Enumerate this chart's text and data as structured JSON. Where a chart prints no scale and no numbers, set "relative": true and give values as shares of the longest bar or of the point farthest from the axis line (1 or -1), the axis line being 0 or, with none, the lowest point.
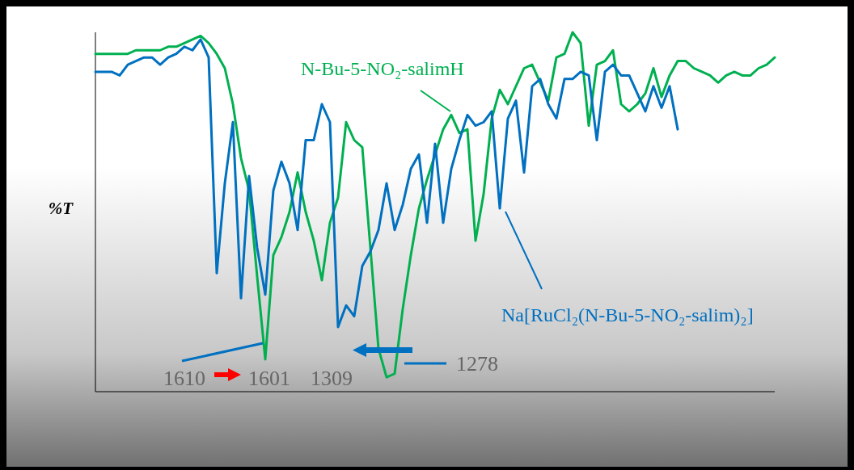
{
  "chart_data": {
    "type": "line",
    "relative": true,
    "ylabel": "%T",
    "categories": [
      null,
      null,
      null,
      null,
      null,
      null,
      null,
      null,
      null,
      null,
      null,
      null,
      null,
      null,
      null,
      null,
      null,
      null,
      null,
      null,
      null,
      null,
      null,
      null,
      null,
      null,
      null,
      null,
      null,
      null,
      null,
      null,
      null,
      null,
      null,
      null,
      null,
      null,
      null,
      null,
      null,
      null,
      null,
      null,
      null,
      null,
      null,
      null,
      null,
      null,
      null,
      null,
      null,
      null,
      null,
      null,
      null,
      null,
      null,
      null,
      null,
      null,
      null,
      null,
      null,
      null,
      null,
      null,
      null,
      null,
      null,
      null,
      null,
      null,
      null,
      null,
      null,
      null,
      null,
      null,
      null,
      null,
      null,
      null,
      null
    ],
    "legend": false,
    "line_style": "solid",
    "series": [
      {
        "name": "N-Bu-5-NO₂-salimH",
        "color": "#00b050",
        "values": [
          0.94,
          0.94,
          0.94,
          0.94,
          0.94,
          0.95,
          0.95,
          0.95,
          0.95,
          0.96,
          0.96,
          0.97,
          0.98,
          0.99,
          0.97,
          0.94,
          0.9,
          0.8,
          0.65,
          0.56,
          0.32,
          0.09,
          0.38,
          0.43,
          0.5,
          0.61,
          0.5,
          0.42,
          0.31,
          0.47,
          0.54,
          0.75,
          0.7,
          0.68,
          0.4,
          0.12,
          0.04,
          0.05,
          0.23,
          0.38,
          0.51,
          0.59,
          0.66,
          0.73,
          0.77,
          0.72,
          0.73,
          0.42,
          0.55,
          0.76,
          0.84,
          0.8,
          0.85,
          0.9,
          0.91,
          0.86,
          0.81,
          0.93,
          0.94,
          1,
          0.97,
          0.74,
          0.91,
          0.92,
          0.95,
          0.8,
          0.78,
          0.8,
          0.83,
          0.9,
          0.82,
          0.88,
          0.92,
          0.92,
          0.9,
          0.89,
          0.88,
          0.86,
          0.88,
          0.89,
          0.88,
          0.88,
          0.9,
          0.91,
          0.93
        ]
      },
      {
        "name": "Na[RuCl₂(N-Bu-5-NO₂-salim)₂]",
        "color": "#0070c0",
        "values": [
          0.89,
          0.89,
          0.89,
          0.88,
          0.91,
          0.92,
          0.93,
          0.93,
          0.91,
          0.93,
          0.94,
          0.96,
          0.95,
          0.98,
          0.93,
          0.33,
          0.58,
          0.75,
          0.26,
          0.6,
          0.4,
          0.27,
          0.56,
          0.64,
          0.58,
          0.45,
          0.7,
          0.7,
          0.8,
          0.75,
          0.18,
          0.24,
          0.21,
          0.35,
          0.39,
          0.45,
          0.58,
          0.45,
          0.52,
          0.62,
          0.66,
          0.47,
          0.69,
          0.47,
          0.62,
          0.7,
          0.77,
          0.74,
          0.75,
          0.78,
          0.51,
          0.76,
          0.81,
          0.61,
          0.85,
          0.87,
          0.8,
          0.76,
          0.87,
          0.87,
          0.89,
          0.88,
          0.7,
          0.89,
          0.91,
          0.88,
          0.88,
          0.83,
          0.78,
          0.85,
          0.79,
          0.85,
          0.73,
          null,
          null,
          null,
          null,
          null,
          null,
          null,
          null,
          null,
          null,
          null,
          null
        ]
      }
    ],
    "annotations": [
      "1610",
      "1601",
      "1309",
      "1278"
    ]
  }
}
